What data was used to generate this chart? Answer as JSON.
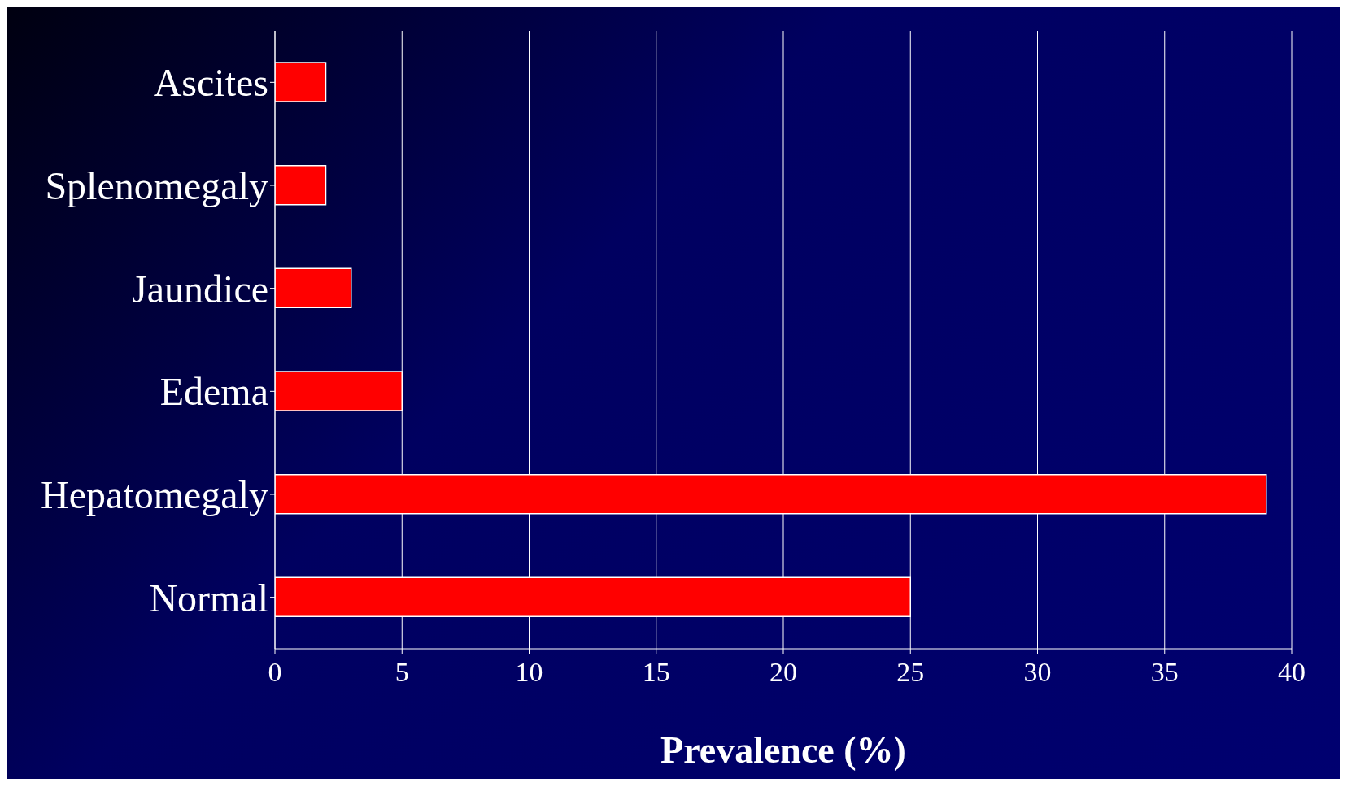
{
  "chart_data": {
    "type": "bar",
    "orientation": "horizontal",
    "categories": [
      "Ascites",
      "Splenomegaly",
      "Jaundice",
      "Edema",
      "Hepatomegaly",
      "Normal"
    ],
    "values": [
      2,
      2,
      3,
      5,
      39,
      25
    ],
    "color": "#ff0000",
    "xlabel": "Prevalence (%)",
    "xlim": [
      0,
      40
    ],
    "xticks": [
      0,
      5,
      10,
      15,
      20,
      25,
      30,
      35,
      40
    ],
    "grid": "x"
  }
}
